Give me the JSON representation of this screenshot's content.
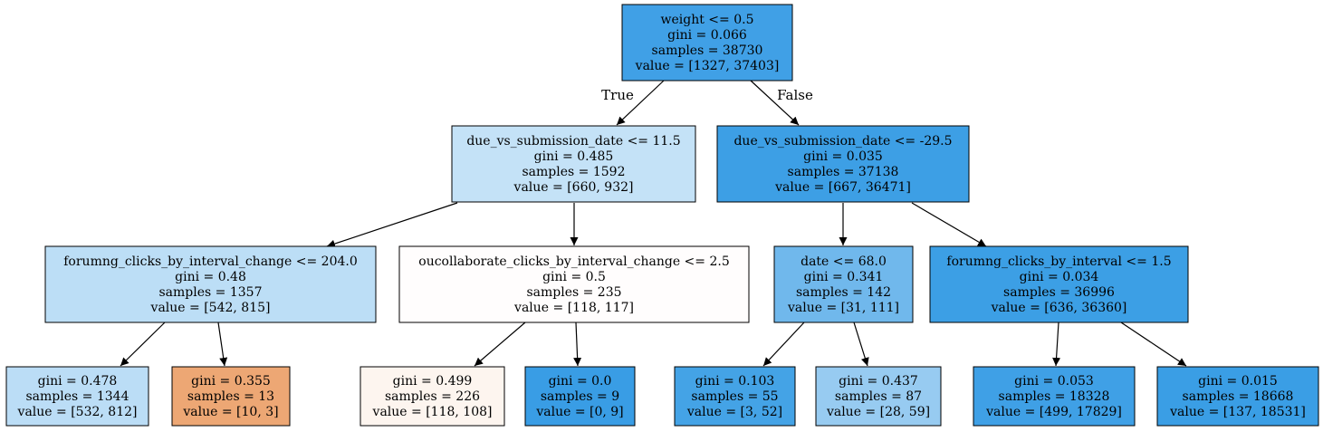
{
  "edge_labels": {
    "true_label": "True",
    "false_label": "False"
  },
  "nodes": [
    {
      "id": "n0",
      "lines": [
        "weight <= 0.5",
        "gini = 0.066",
        "samples = 38730",
        "value = [1327, 37403]"
      ],
      "fill": "#40a0e6"
    },
    {
      "id": "n1",
      "lines": [
        "due_vs_submission_date <= 11.5",
        "gini = 0.485",
        "samples = 1592",
        "value = [660, 932]"
      ],
      "fill": "#c4e2f7"
    },
    {
      "id": "n2",
      "lines": [
        "due_vs_submission_date <= -29.5",
        "gini = 0.035",
        "samples = 37138",
        "value = [667, 36471]"
      ],
      "fill": "#3d9fe5"
    },
    {
      "id": "n3",
      "lines": [
        "forumng_clicks_by_interval_change <= 204.0",
        "gini = 0.48",
        "samples = 1357",
        "value = [542, 815]"
      ],
      "fill": "#bcdef6"
    },
    {
      "id": "n4",
      "lines": [
        "oucollaborate_clicks_by_interval_change <= 2.5",
        "gini = 0.5",
        "samples = 235",
        "value = [118, 117]"
      ],
      "fill": "#fffdfd"
    },
    {
      "id": "n5",
      "lines": [
        "date <= 68.0",
        "gini = 0.341",
        "samples = 142",
        "value = [31, 111]"
      ],
      "fill": "#70b8ec"
    },
    {
      "id": "n6",
      "lines": [
        "forumng_clicks_by_interval <= 1.5",
        "gini = 0.034",
        "samples = 36996",
        "value = [636, 36360]"
      ],
      "fill": "#3c9fe5"
    },
    {
      "id": "n7",
      "lines": [
        "gini = 0.478",
        "samples = 1344",
        "value = [532, 812]"
      ],
      "fill": "#bbddf6"
    },
    {
      "id": "n8",
      "lines": [
        "gini = 0.355",
        "samples = 13",
        "value = [10, 3]"
      ],
      "fill": "#eda774"
    },
    {
      "id": "n9",
      "lines": [
        "gini = 0.499",
        "samples = 226",
        "value = [118, 108]"
      ],
      "fill": "#fdf5ef"
    },
    {
      "id": "n10",
      "lines": [
        "gini = 0.0",
        "samples = 9",
        "value = [0, 9]"
      ],
      "fill": "#399de5"
    },
    {
      "id": "n11",
      "lines": [
        "gini = 0.103",
        "samples = 55",
        "value = [3, 52]"
      ],
      "fill": "#44a3e6"
    },
    {
      "id": "n12",
      "lines": [
        "gini = 0.437",
        "samples = 87",
        "value = [28, 59]"
      ],
      "fill": "#97cbf1"
    },
    {
      "id": "n13",
      "lines": [
        "gini = 0.053",
        "samples = 18328",
        "value = [499, 17829]"
      ],
      "fill": "#3fa0e6"
    },
    {
      "id": "n14",
      "lines": [
        "gini = 0.015",
        "samples = 18668",
        "value = [137, 18531]"
      ],
      "fill": "#3a9ee5"
    }
  ]
}
